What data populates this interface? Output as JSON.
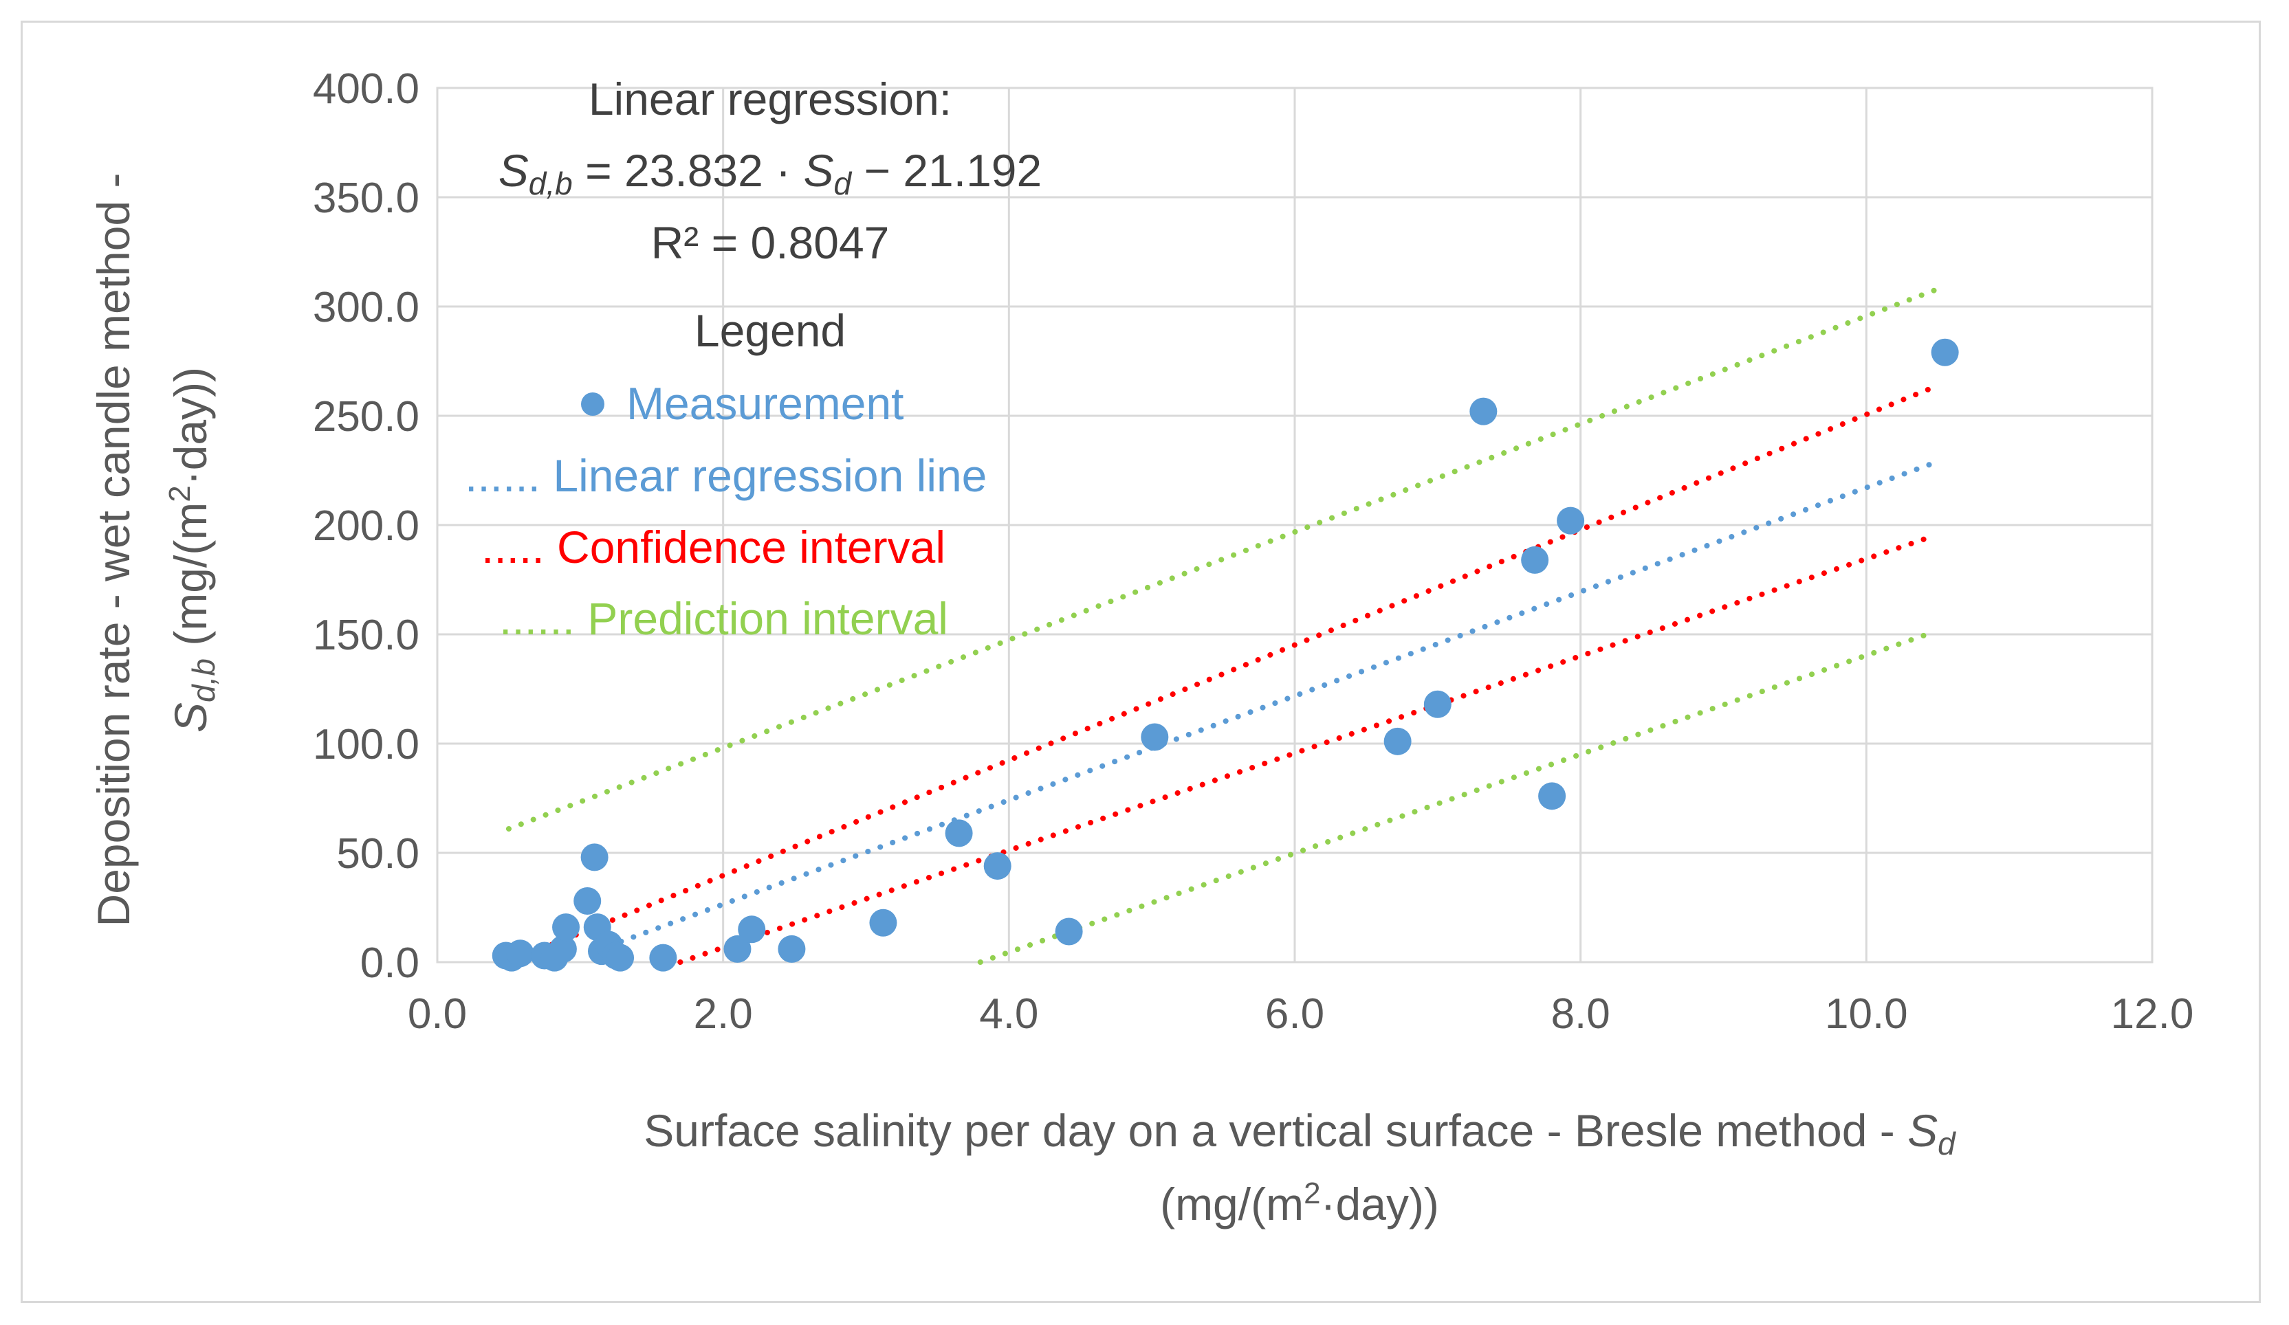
{
  "chart_data": {
    "type": "scatter",
    "title": "",
    "xlabel": "Surface salinity per day on a vertical surface - Bresle method - Sd (mg/(m²·day))",
    "ylabel": "Deposition rate - wet candle method - Sd,b (mg/(m²·day))",
    "xlim": [
      0,
      12
    ],
    "ylim": [
      0,
      400
    ],
    "x_ticks": [
      "0.0",
      "2.0",
      "4.0",
      "6.0",
      "8.0",
      "10.0",
      "12.0"
    ],
    "y_ticks": [
      "0.0",
      "50.0",
      "100.0",
      "150.0",
      "200.0",
      "250.0",
      "300.0",
      "350.0",
      "400.0"
    ],
    "grid": true,
    "annotation": {
      "heading": "Linear regression:",
      "equation_lhs": "S",
      "equation_lhs_sub": "d,b",
      "equation_mid": " = 23.832 · ",
      "equation_var": "S",
      "equation_var_sub": "d",
      "equation_tail": " − 21.192",
      "r2": "R² = 0.8047"
    },
    "legend": {
      "title": "Legend",
      "items": [
        {
          "marker": "● ",
          "label": "Measurement",
          "color": "#5b9bd5"
        },
        {
          "marker": "...... ",
          "label": "Linear regression line",
          "color": "#5b9bd5"
        },
        {
          "marker": "..... ",
          "label": "Confidence interval",
          "color": "#ff0000"
        },
        {
          "marker": "...... ",
          "label": "Prediction interval",
          "color": "#92d050"
        }
      ]
    },
    "axis_titles": {
      "y_line1": "Deposition rate - wet candle method -",
      "y_line2_var": "S",
      "y_line2_sub": "d,b",
      "y_line2_tail": " (mg/(m",
      "y_line2_sup": "2",
      "y_line2_end": "·day))",
      "x_line1": "Surface salinity per day on a vertical surface - Bresle method - ",
      "x_line1_var": "S",
      "x_line1_sub": "d",
      "x_line2": "(mg/(m",
      "x_line2_sup": "2",
      "x_line2_end": "·day))"
    },
    "series": [
      {
        "name": "Measurement",
        "color": "#5b9bd5",
        "points": [
          [
            0.48,
            3
          ],
          [
            0.52,
            2
          ],
          [
            0.58,
            4
          ],
          [
            0.75,
            3
          ],
          [
            0.82,
            2
          ],
          [
            0.88,
            6
          ],
          [
            0.9,
            16
          ],
          [
            1.05,
            28
          ],
          [
            1.1,
            48
          ],
          [
            1.12,
            16
          ],
          [
            1.15,
            5
          ],
          [
            1.2,
            8
          ],
          [
            1.25,
            3
          ],
          [
            1.28,
            2
          ],
          [
            1.58,
            2
          ],
          [
            2.1,
            6
          ],
          [
            2.2,
            15
          ],
          [
            2.48,
            6
          ],
          [
            3.12,
            18
          ],
          [
            3.65,
            59
          ],
          [
            3.92,
            44
          ],
          [
            4.42,
            14
          ],
          [
            5.02,
            103
          ],
          [
            6.72,
            101
          ],
          [
            7.0,
            118
          ],
          [
            7.32,
            252
          ],
          [
            7.68,
            184
          ],
          [
            7.8,
            76
          ],
          [
            7.93,
            202
          ],
          [
            10.55,
            279
          ]
        ]
      },
      {
        "name": "Linear regression line",
        "color": "#5b9bd5",
        "slope": 23.832,
        "intercept": -21.192,
        "x_range": [
          1.2,
          10.47
        ]
      },
      {
        "name": "Confidence interval upper",
        "color": "#ff0000",
        "line": [
          [
            0.8,
            8
          ],
          [
            10.47,
            263
          ]
        ]
      },
      {
        "name": "Confidence interval lower",
        "color": "#ff0000",
        "line": [
          [
            1.7,
            0
          ],
          [
            10.47,
            195
          ]
        ]
      },
      {
        "name": "Prediction interval upper",
        "color": "#92d050",
        "line": [
          [
            0.5,
            61
          ],
          [
            10.5,
            308
          ]
        ]
      },
      {
        "name": "Prediction interval lower",
        "color": "#92d050",
        "line": [
          [
            3.8,
            0
          ],
          [
            10.47,
            151
          ]
        ]
      }
    ]
  }
}
